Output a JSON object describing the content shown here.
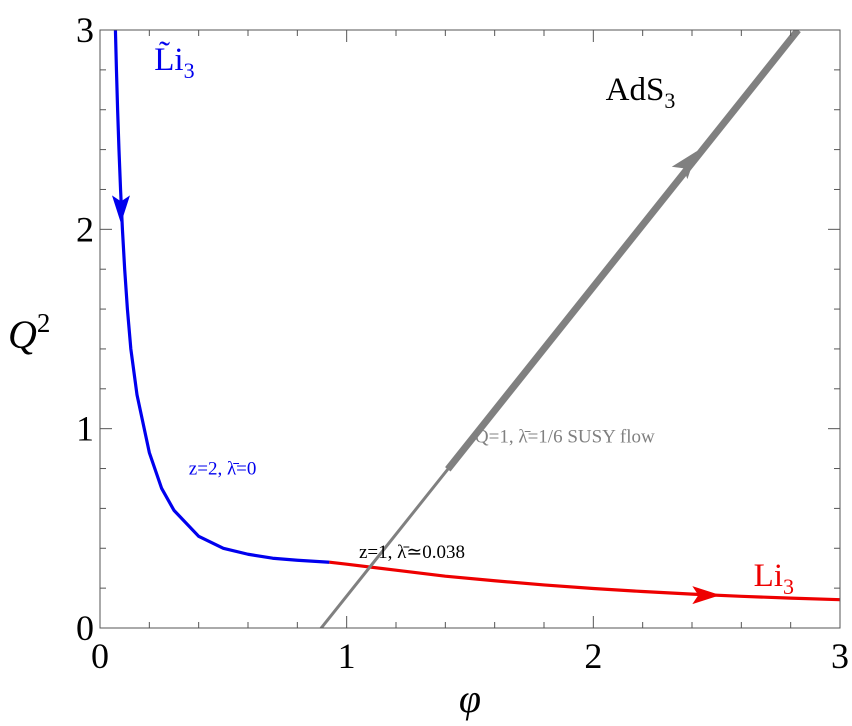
{
  "chart_data": {
    "type": "line",
    "xlabel": "φ",
    "ylabel_base": "Q",
    "ylabel_sup": "2",
    "xlim": [
      0,
      3
    ],
    "ylim": [
      0,
      3
    ],
    "x_ticks": [
      0,
      1,
      2,
      3
    ],
    "y_ticks": [
      0,
      1,
      2,
      3
    ],
    "x_tick_labels": [
      "0",
      "1",
      "2",
      "3"
    ],
    "y_tick_labels": [
      "0",
      "1",
      "2",
      "3"
    ],
    "grid": false,
    "series": [
      {
        "name": "L̃i₃",
        "color": "#0000ee",
        "x": [
          0.0625,
          0.0667,
          0.0714,
          0.0769,
          0.0833,
          0.0909,
          0.1,
          0.1111,
          0.125,
          0.15,
          0.2,
          0.25,
          0.3,
          0.4,
          0.5,
          0.6,
          0.7,
          0.8,
          0.93
        ],
        "y": [
          3.0,
          2.8,
          2.6,
          2.4,
          2.2,
          2.0,
          1.8,
          1.6,
          1.4,
          1.17,
          0.88,
          0.7,
          0.59,
          0.46,
          0.4,
          0.37,
          0.35,
          0.34,
          0.33
        ],
        "arrow_at": [
          0.085,
          2.1
        ],
        "arrow_direction": "down"
      },
      {
        "name": "Li₃",
        "color": "#ee0000",
        "x": [
          0.93,
          1.0,
          1.2,
          1.4,
          1.6,
          1.8,
          2.0,
          2.2,
          2.4,
          2.6,
          2.8,
          3.0
        ],
        "y": [
          0.33,
          0.32,
          0.29,
          0.26,
          0.237,
          0.216,
          0.198,
          0.183,
          0.17,
          0.159,
          0.15,
          0.142
        ],
        "arrow_at": [
          2.45,
          0.165
        ],
        "arrow_direction": "right"
      },
      {
        "name": "AdS₃",
        "color": "#808080",
        "x": [
          0.71,
          2.83
        ],
        "y": [
          -0.29,
          3.0
        ],
        "thick_segment_x": [
          1.41,
          2.83
        ],
        "arrow_at": [
          2.38,
          2.33
        ],
        "arrow_direction": "up"
      }
    ],
    "labels": {
      "li3_tilde": {
        "base": "L̃i",
        "sub": "3"
      },
      "li3": {
        "base": "Li",
        "sub": "3"
      },
      "ads3": {
        "base": "AdS",
        "sub": "3"
      },
      "blue_annot": "z=2, λ̄=0",
      "black_annot": "z=1, λ̄≃0.038",
      "gray_annot": "Q=1, λ̄=1/6 SUSY flow"
    },
    "annotation_points": {
      "li3_tilde": [
        0.22,
        2.8
      ],
      "li3": [
        2.65,
        0.21
      ],
      "ads3": [
        2.05,
        2.65
      ],
      "blue_annot": [
        0.36,
        0.77
      ],
      "black_annot": [
        1.05,
        0.35
      ],
      "gray_annot": [
        1.52,
        0.93
      ]
    }
  }
}
